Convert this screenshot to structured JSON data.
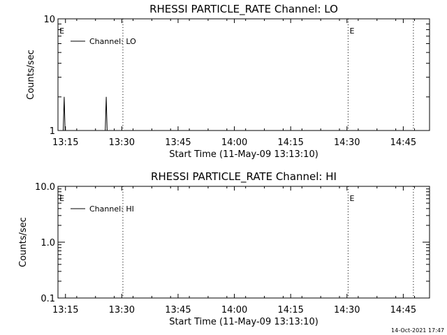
{
  "footer": {
    "timestamp": "14-Oct-2021 17:47"
  },
  "chart_data": [
    {
      "type": "line",
      "title": "RHESSI PARTICLE_RATE Channel: LO",
      "xlabel": "Start Time (11-May-09 13:13:10)",
      "ylabel": "Counts/sec",
      "yscale": "log",
      "x_tick_minutes": [
        2,
        17,
        32,
        47,
        62,
        77,
        92
      ],
      "x_tick_labels": [
        "13:15",
        "13:30",
        "13:45",
        "14:00",
        "14:15",
        "14:30",
        "14:45"
      ],
      "xlim_minutes": [
        0,
        99
      ],
      "ylim": [
        1,
        10
      ],
      "y_ticks": [
        1,
        10
      ],
      "y_tick_labels": [
        "1",
        "10"
      ],
      "legend": {
        "label": "Channel: LO",
        "placement": "top-left"
      },
      "series": [
        {
          "x_minutes": [
            1.1,
            1.4,
            1.65,
            1.9,
            12.3,
            12.6,
            12.85,
            13.1
          ],
          "y": [
            1.0,
            1.0,
            2.0,
            1.0,
            1.0,
            1.0,
            2.0,
            1.0
          ]
        }
      ],
      "event_lines_minutes": [
        17.3,
        77.3,
        94.7
      ],
      "event_markers": [
        {
          "label": "E",
          "x_minutes": 0.2
        },
        {
          "label": "E",
          "x_minutes": 77.5
        }
      ]
    },
    {
      "type": "line",
      "title": "RHESSI PARTICLE_RATE Channel: HI",
      "xlabel": "Start Time (11-May-09 13:13:10)",
      "ylabel": "Counts/sec",
      "yscale": "log",
      "x_tick_minutes": [
        2,
        17,
        32,
        47,
        62,
        77,
        92
      ],
      "x_tick_labels": [
        "13:15",
        "13:30",
        "13:45",
        "14:00",
        "14:15",
        "14:30",
        "14:45"
      ],
      "xlim_minutes": [
        0,
        99
      ],
      "ylim": [
        0.1,
        10
      ],
      "y_ticks": [
        0.1,
        1,
        10
      ],
      "y_tick_labels": [
        "0.1",
        "1.0",
        "10.0"
      ],
      "legend": {
        "label": "Channel: HI",
        "placement": "top-left"
      },
      "series": [
        {
          "x_minutes": [],
          "y": []
        }
      ],
      "event_lines_minutes": [
        17.3,
        77.3,
        94.7
      ],
      "event_markers": [
        {
          "label": "E",
          "x_minutes": 0.2
        },
        {
          "label": "E",
          "x_minutes": 77.5
        }
      ]
    }
  ]
}
